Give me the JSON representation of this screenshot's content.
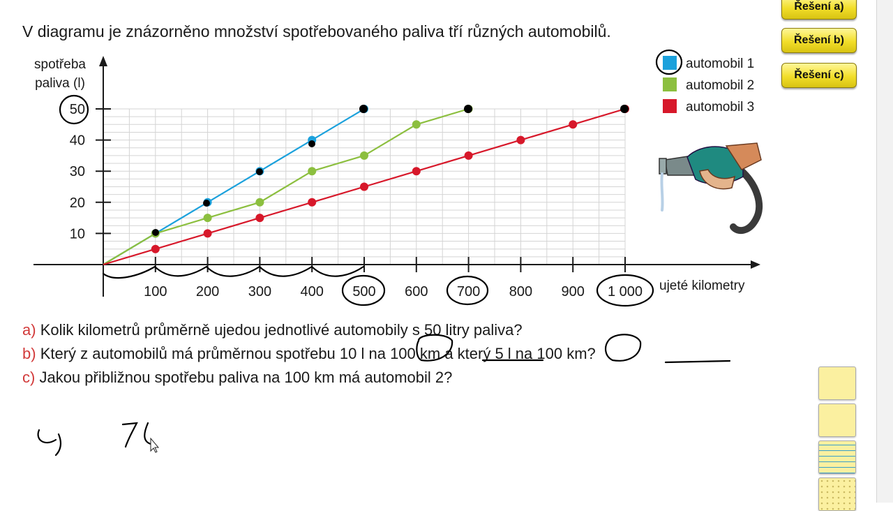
{
  "title": "V diagramu je znázorněno množství spotřebovaného paliva tří různých automobilů.",
  "buttons": {
    "a": "Řešení a)",
    "b": "Řešení b)",
    "c": "Řešení c)"
  },
  "questions": [
    {
      "letter": "a)",
      "text": "Kolik kilometrů průměrně ujedou jednotlivé automobily s 50 litry paliva?"
    },
    {
      "letter": "b)",
      "text": "Který z automobilů má průměrnou spotřebu 10 l na 100 km a který 5 l na 100 km?"
    },
    {
      "letter": "c)",
      "text": "Jakou přibližnou spotřebu paliva na 100 km má automobil 2?"
    }
  ],
  "handwriting": {
    "label": "c)",
    "answer": "7l"
  },
  "icons": {
    "fuel": "fuel-nozzle-icon",
    "cursor": "mouse-cursor-icon"
  },
  "chart_data": {
    "type": "line",
    "ylabel_line1": "spotřeba",
    "ylabel_line2": "paliva (l)",
    "xlabel": "ujeté kilometry",
    "xlim": [
      0,
      1000
    ],
    "ylim": [
      0,
      50
    ],
    "xticks": [
      100,
      200,
      300,
      400,
      500,
      600,
      700,
      800,
      900,
      1000
    ],
    "xtick_labels": [
      "100",
      "200",
      "300",
      "400",
      "500",
      "600",
      "700",
      "800",
      "900",
      "1 000"
    ],
    "yticks": [
      10,
      20,
      30,
      40,
      50
    ],
    "grid": true,
    "legend_position": "top-right",
    "series": [
      {
        "name": "automobil 1",
        "color": "#1ba1dc",
        "x": [
          0,
          100,
          200,
          300,
          400,
          500
        ],
        "y": [
          0,
          10,
          20,
          30,
          40,
          50
        ]
      },
      {
        "name": "automobil 2",
        "color": "#8cbf3f",
        "x": [
          0,
          100,
          200,
          300,
          400,
          500,
          600,
          700
        ],
        "y": [
          0,
          10,
          15,
          20,
          30,
          35,
          45,
          50
        ]
      },
      {
        "name": "automobil 3",
        "color": "#d7182a",
        "x": [
          0,
          100,
          200,
          300,
          400,
          500,
          600,
          700,
          800,
          900,
          1000
        ],
        "y": [
          0,
          5,
          10,
          15,
          20,
          25,
          30,
          35,
          40,
          45,
          50
        ]
      }
    ]
  }
}
